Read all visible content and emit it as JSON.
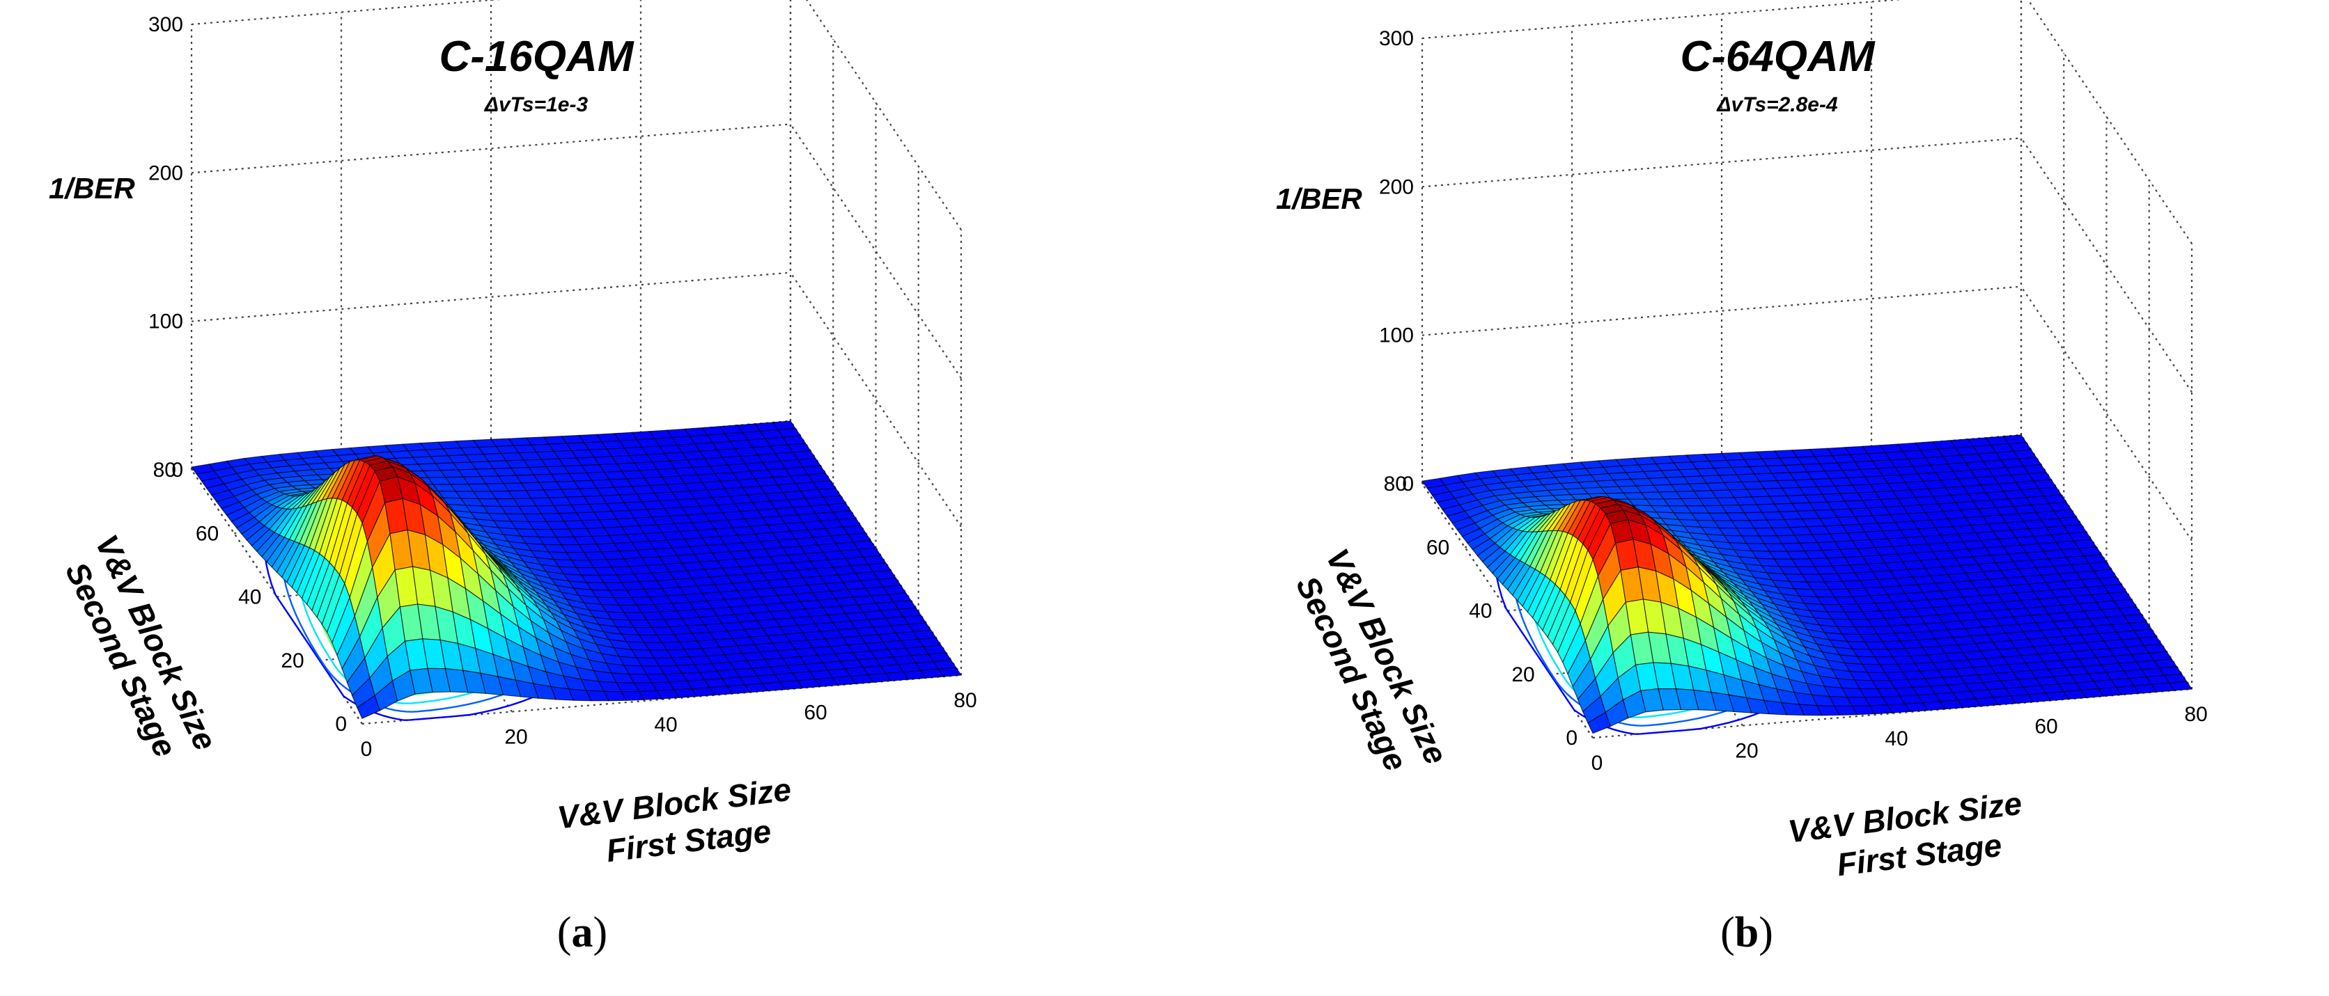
{
  "chart_data": [
    {
      "type": "surface3d",
      "title": "C-16QAM",
      "subtitle": "ΔvTs=1e-3",
      "zlabel": "1/BER",
      "xlabel": [
        "V&V Block Size",
        "First Stage"
      ],
      "ylabel": [
        "V&V Block Size",
        "Second Stage"
      ],
      "xlim": [
        0,
        80
      ],
      "ylim": [
        0,
        80
      ],
      "zlim": [
        0,
        300
      ],
      "xticks": [
        "0",
        "20",
        "40",
        "60",
        "80"
      ],
      "yticks": [
        "0",
        "20",
        "40",
        "60",
        "80"
      ],
      "zticks": [
        "0",
        "100",
        "200",
        "300"
      ],
      "peak": {
        "x": 8,
        "y": 18,
        "z": 130
      },
      "grid": true,
      "caption_letter": "a"
    },
    {
      "type": "surface3d",
      "title": "C-64QAM",
      "subtitle": "ΔvTs=2.8e-4",
      "zlabel": "1/BER",
      "xlabel": [
        "V&V Block Size",
        "First Stage"
      ],
      "ylabel": [
        "V&V Block Size",
        "Second Stage"
      ],
      "xlim": [
        0,
        80
      ],
      "ylim": [
        0,
        80
      ],
      "zlim": [
        0,
        300
      ],
      "xticks": [
        "0",
        "20",
        "40",
        "60",
        "80"
      ],
      "yticks": [
        "0",
        "20",
        "40",
        "60",
        "80"
      ],
      "zticks": [
        "0",
        "100",
        "200",
        "300"
      ],
      "peak": {
        "x": 8,
        "y": 18,
        "z": 110
      },
      "grid": true,
      "caption_letter": "b"
    }
  ]
}
